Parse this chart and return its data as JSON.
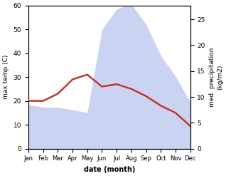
{
  "months": [
    "Jan",
    "Feb",
    "Mar",
    "Apr",
    "May",
    "Jun",
    "Jul",
    "Aug",
    "Sep",
    "Oct",
    "Nov",
    "Dec"
  ],
  "temp_max": [
    20,
    20,
    23,
    29,
    31,
    26,
    27,
    25,
    22,
    18,
    15,
    9.5
  ],
  "precipitation": [
    8.5,
    8,
    8,
    7.5,
    7,
    23,
    27,
    28,
    24,
    18,
    14,
    9
  ],
  "temp_ylim": [
    0,
    60
  ],
  "precip_ylim": [
    0,
    27.69
  ],
  "temp_color": "#c0392b",
  "fill_color": "#b0bcec",
  "fill_alpha": 0.65,
  "ylabel_left": "max temp (C)",
  "ylabel_right": "med. precipitation\n(kg/m2)",
  "xlabel": "date (month)",
  "precip_yticks": [
    0,
    5,
    10,
    15,
    20,
    25
  ],
  "temp_yticks": [
    0,
    10,
    20,
    30,
    40,
    50,
    60
  ],
  "background_color": "#ffffff"
}
